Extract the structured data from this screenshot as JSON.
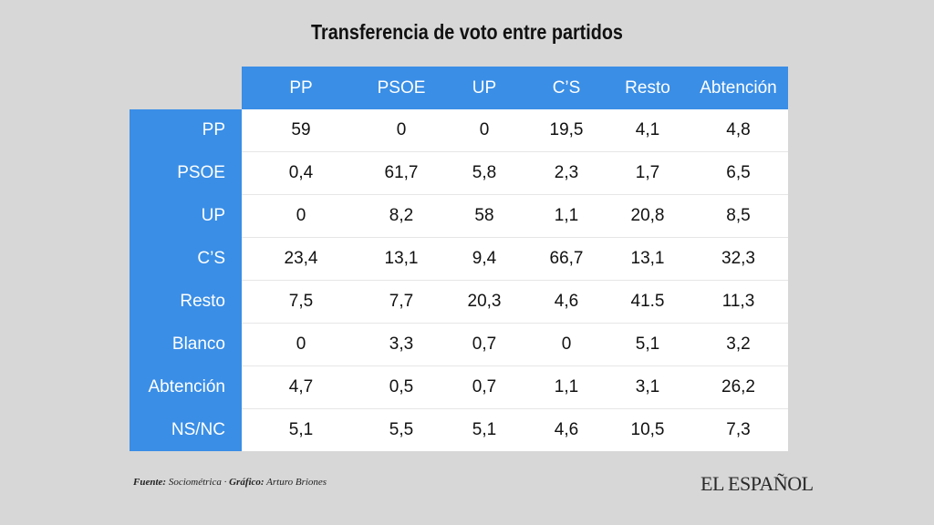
{
  "title": "Transferencia de voto entre partidos",
  "chart_data": {
    "type": "table",
    "title": "Transferencia de voto entre partidos",
    "columns": [
      "PP",
      "PSOE",
      "UP",
      "C’S",
      "Resto",
      "Abtención"
    ],
    "rows": [
      {
        "label": "PP",
        "values": [
          "59",
          "0",
          "0",
          "19,5",
          "4,1",
          "4,8"
        ]
      },
      {
        "label": "PSOE",
        "values": [
          "0,4",
          "61,7",
          "5,8",
          "2,3",
          "1,7",
          "6,5"
        ]
      },
      {
        "label": "UP",
        "values": [
          "0",
          "8,2",
          "58",
          "1,1",
          "20,8",
          "8,5"
        ]
      },
      {
        "label": "C’S",
        "values": [
          "23,4",
          "13,1",
          "9,4",
          "66,7",
          "13,1",
          "32,3"
        ]
      },
      {
        "label": "Resto",
        "values": [
          "7,5",
          "7,7",
          "20,3",
          "4,6",
          "41.5",
          "11,3"
        ]
      },
      {
        "label": "Blanco",
        "values": [
          "0",
          "3,3",
          "0,7",
          "0",
          "5,1",
          "3,2"
        ]
      },
      {
        "label": "Abtención",
        "values": [
          "4,7",
          "0,5",
          "0,7",
          "1,1",
          "3,1",
          "26,2"
        ]
      },
      {
        "label": "NS/NC",
        "values": [
          "5,1",
          "5,5",
          "5,1",
          "4,6",
          "10,5",
          "7,3"
        ]
      }
    ]
  },
  "footer": {
    "source_label": "Fuente:",
    "source_value": "Sociométrica",
    "separator": "·",
    "graphic_label": "Gráfico:",
    "graphic_value": "Arturo Briones"
  },
  "logo": "EL ESPAÑOL",
  "colors": {
    "background": "#d7d7d7",
    "header_blue": "#3a8ee6",
    "cell_bg": "#ffffff"
  }
}
